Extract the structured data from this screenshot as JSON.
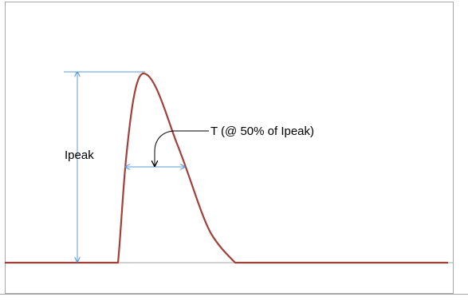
{
  "diagram": {
    "peak_label": "Ipeak",
    "width_label": "T (@ 50% of Ipeak)",
    "colors": {
      "pulse": "#A0403A",
      "dimension": "#5B9BD5",
      "frame": "#A6A6A6",
      "callout": "#000000"
    }
  }
}
